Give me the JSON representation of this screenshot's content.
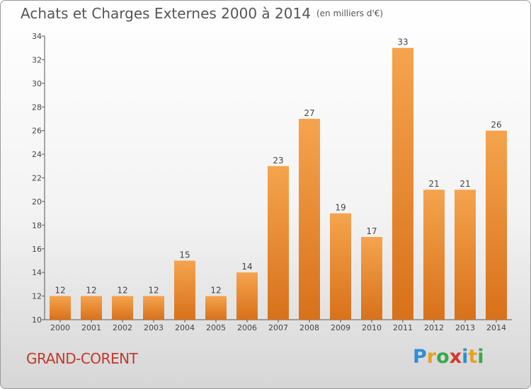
{
  "title": "Achats et Charges Externes 2000 à 2014",
  "unit": "(en milliers d'€)",
  "place": "GRAND-CORENT",
  "logo_letters": [
    {
      "ch": "P",
      "color": "#2e8fd4"
    },
    {
      "ch": "r",
      "color": "#e8a21d"
    },
    {
      "ch": "o",
      "color": "#3aa84a"
    },
    {
      "ch": "x",
      "color": "#d8372a"
    },
    {
      "ch": "i",
      "color": "#2e8fd4"
    },
    {
      "ch": "t",
      "color": "#e8a21d"
    },
    {
      "ch": "i",
      "color": "#3aa84a"
    }
  ],
  "chart_data": {
    "type": "bar",
    "categories": [
      "2000",
      "2001",
      "2002",
      "2003",
      "2004",
      "2005",
      "2006",
      "2007",
      "2008",
      "2009",
      "2010",
      "2011",
      "2012",
      "2013",
      "2014"
    ],
    "values": [
      12,
      12,
      12,
      12,
      15,
      12,
      14,
      23,
      27,
      19,
      17,
      33,
      21,
      21,
      26
    ],
    "ylim": [
      10,
      34
    ],
    "yticks": [
      10,
      12,
      14,
      16,
      18,
      20,
      22,
      24,
      26,
      28,
      30,
      32,
      34
    ],
    "grid": false,
    "bar_color_top": "#f5a44e",
    "bar_color_bottom": "#d8711a"
  }
}
